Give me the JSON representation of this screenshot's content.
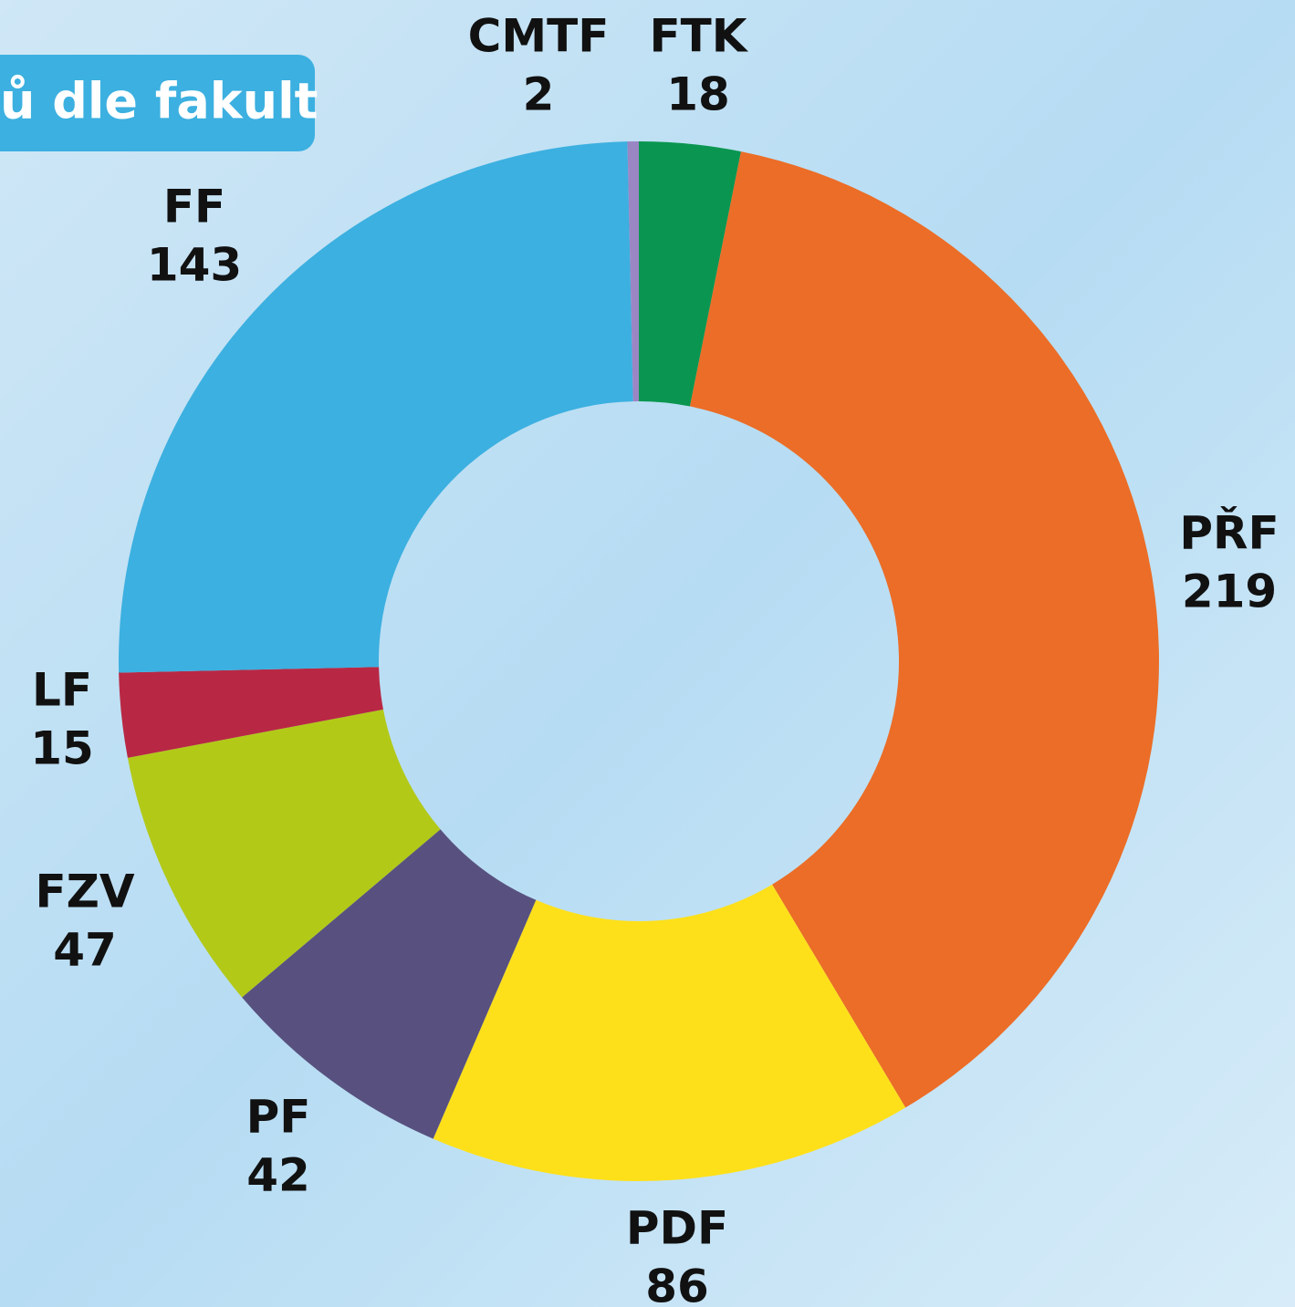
{
  "chart_data": {
    "type": "pie",
    "title": "ů dle fakult",
    "categories": [
      "FTK",
      "PŘF",
      "PDF",
      "PF",
      "FZV",
      "LF",
      "FF",
      "CMTF"
    ],
    "values": [
      18,
      219,
      86,
      42,
      47,
      15,
      143,
      2
    ],
    "colors": [
      "#0a9650",
      "#eb6d27",
      "#fee01a",
      "#58517f",
      "#b2c918",
      "#b82844",
      "#3cb0e0",
      "#9b86c4"
    ]
  }
}
